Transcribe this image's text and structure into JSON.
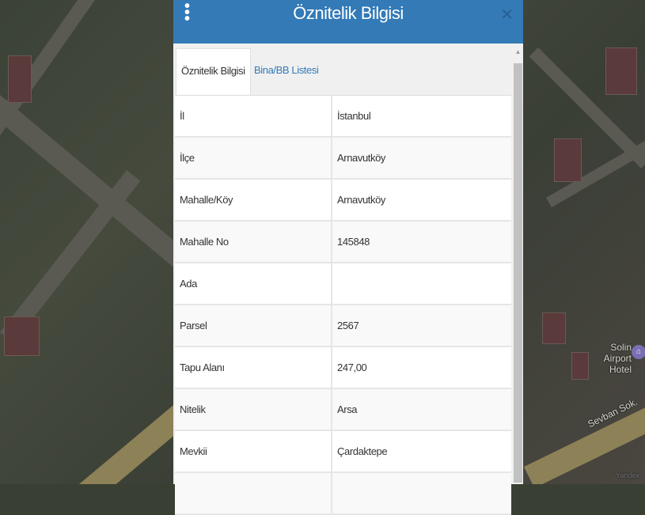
{
  "map": {
    "labels": [
      "Solin Airport Hotel",
      "Sevban Sok.",
      "Yandex"
    ],
    "poi_icon": "hotel-icon"
  },
  "panel": {
    "title": "Öznitelik Bilgisi",
    "menu_icon": "⋮",
    "close_icon": "✕",
    "header_color": "#337ab7",
    "tabs": [
      {
        "label": "Öznitelik Bilgisi",
        "active": true
      },
      {
        "label": "Bina/BB Listesi",
        "active": false
      }
    ],
    "rows": [
      {
        "key": "İl",
        "value": "İstanbul"
      },
      {
        "key": "İlçe",
        "value": "Arnavutköy"
      },
      {
        "key": "Mahalle/Köy",
        "value": "Arnavutköy"
      },
      {
        "key": "Mahalle No",
        "value": "145848"
      },
      {
        "key": "Ada",
        "value": ""
      },
      {
        "key": "Parsel",
        "value": "2567"
      },
      {
        "key": "Tapu Alanı",
        "value": "247,00"
      },
      {
        "key": "Nitelik",
        "value": "Arsa"
      },
      {
        "key": "Mevkii",
        "value": "Çardaktepe"
      },
      {
        "key": "",
        "value": ""
      }
    ]
  }
}
